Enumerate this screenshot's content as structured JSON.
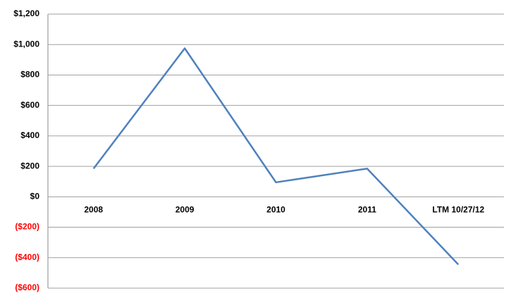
{
  "chart_data": {
    "type": "line",
    "categories": [
      "2008",
      "2009",
      "2010",
      "2011",
      "LTM 10/27/12"
    ],
    "values": [
      185,
      975,
      95,
      185,
      -445
    ],
    "color": "#4f81bd",
    "negative_label_color": "#ff0000",
    "ylim": [
      -600,
      1200
    ],
    "yticks": [
      {
        "value": -600,
        "label": "($600)"
      },
      {
        "value": -400,
        "label": "($400)"
      },
      {
        "value": -200,
        "label": "($200)"
      },
      {
        "value": 0,
        "label": "$0"
      },
      {
        "value": 200,
        "label": "$200"
      },
      {
        "value": 400,
        "label": "$400"
      },
      {
        "value": 600,
        "label": "$600"
      },
      {
        "value": 800,
        "label": "$800"
      },
      {
        "value": 1000,
        "label": "$1,000"
      },
      {
        "value": 1200,
        "label": "$1,200"
      }
    ],
    "grid": true
  }
}
